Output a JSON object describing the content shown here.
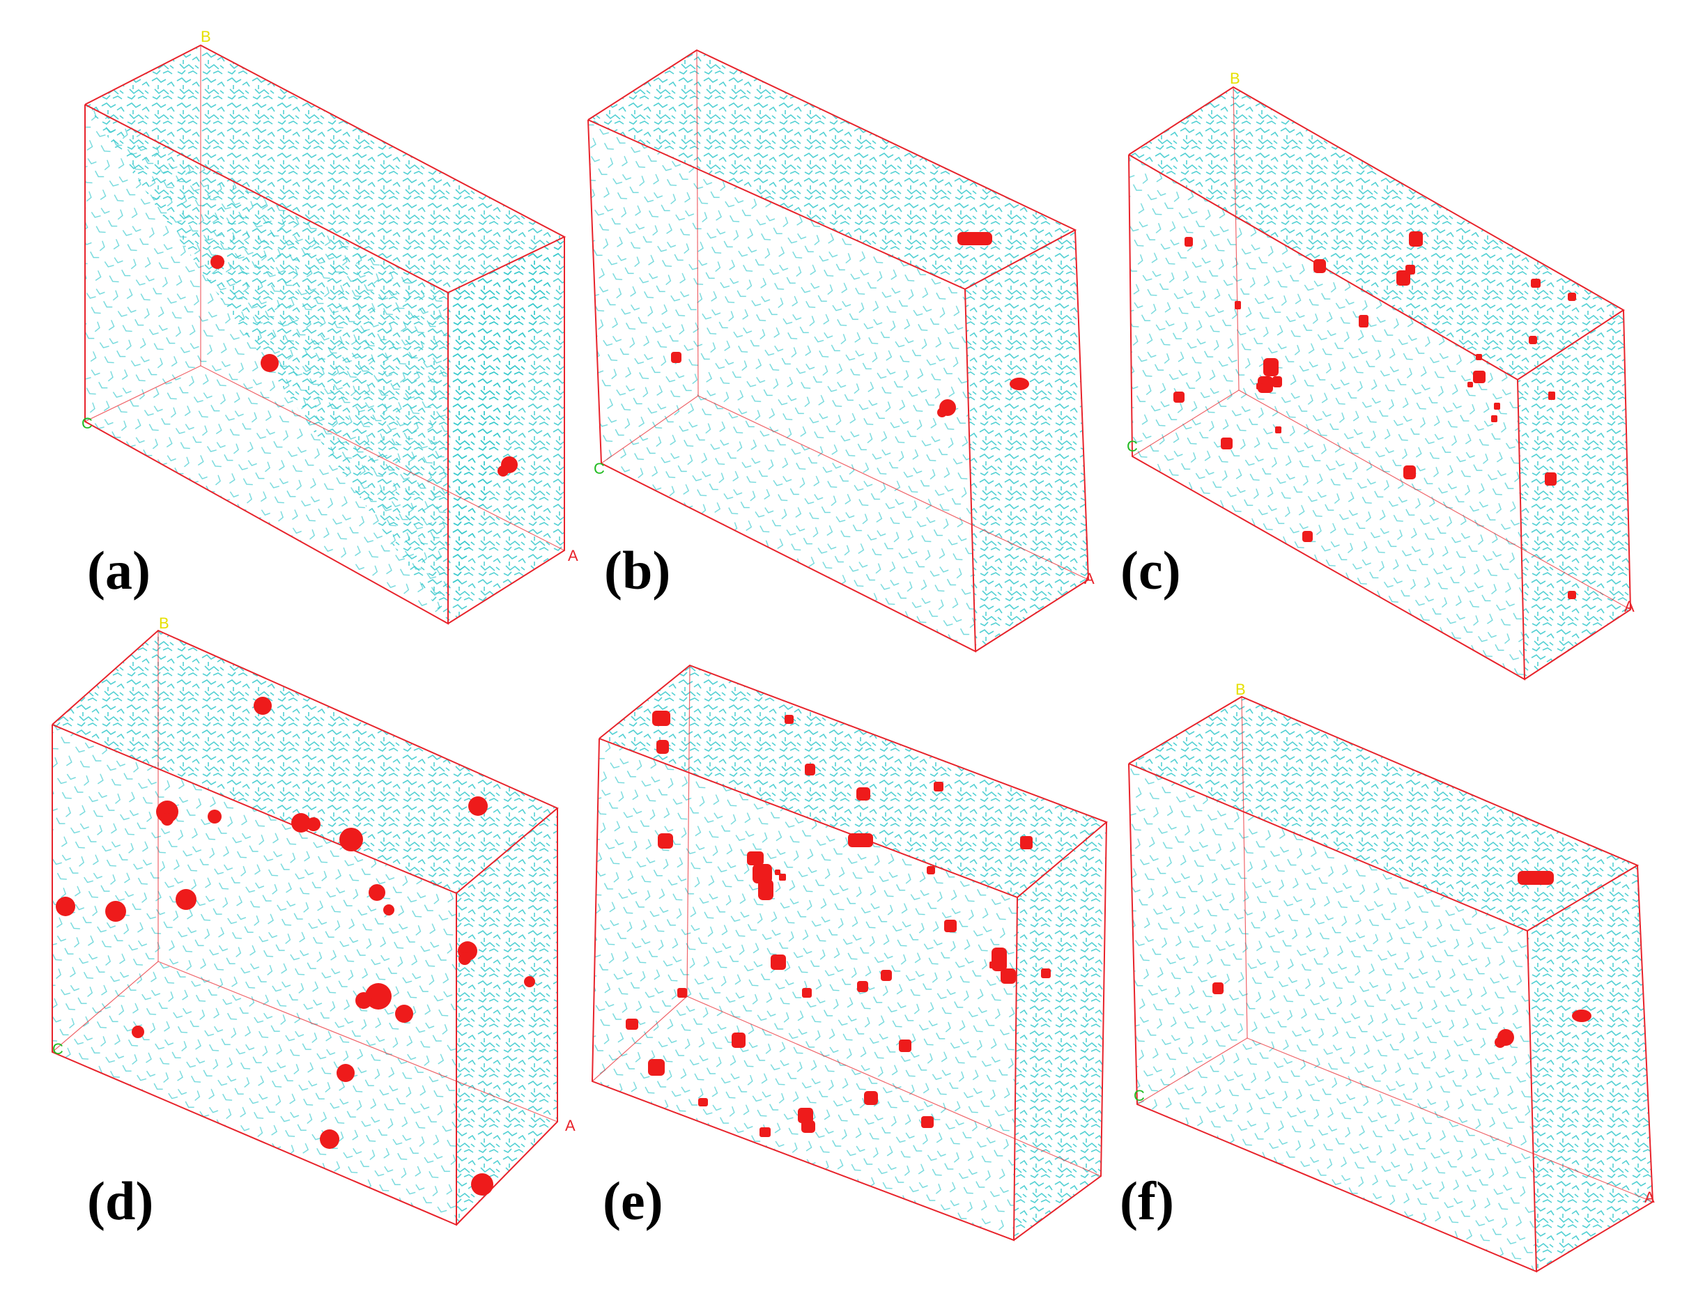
{
  "colors": {
    "background": "#ffffff",
    "box_edges": "#e8232b",
    "solvent_molecules": "#33c8cc",
    "solute_clusters": "#ee1b1b",
    "axis_label_a": "#e8232b",
    "axis_label_b": "#e6e000",
    "axis_label_c": "#22bb22",
    "panel_label": "#000000"
  },
  "panels": [
    {
      "id": "a",
      "label": "(a)",
      "axis_a": "A",
      "axis_b": "B",
      "axis_c": "C",
      "visible_cluster_count": 4
    },
    {
      "id": "b",
      "label": "(b)",
      "axis_a": "A",
      "axis_b": "",
      "axis_c": "C",
      "visible_cluster_count": 5
    },
    {
      "id": "c",
      "label": "(c)",
      "axis_a": "A",
      "axis_b": "B",
      "axis_c": "C",
      "visible_cluster_count": 27
    },
    {
      "id": "d",
      "label": "(d)",
      "axis_a": "A",
      "axis_b": "B",
      "axis_c": "C",
      "visible_cluster_count": 23
    },
    {
      "id": "e",
      "label": "(e)",
      "axis_a": "",
      "axis_b": "",
      "axis_c": "",
      "visible_cluster_count": 36
    },
    {
      "id": "f",
      "label": "(f)",
      "axis_a": "A",
      "axis_b": "B",
      "axis_c": "C",
      "visible_cluster_count": 5
    }
  ]
}
